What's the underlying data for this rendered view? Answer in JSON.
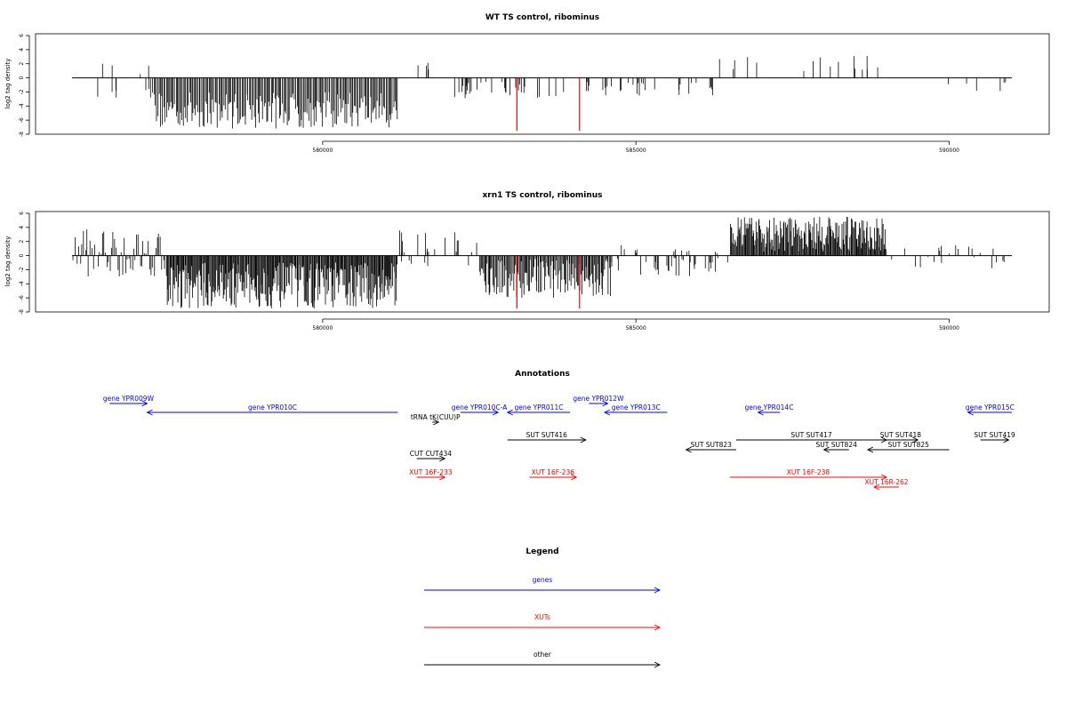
{
  "chart_data": [
    {
      "type": "bar",
      "title": "WT TS control, ribominus",
      "ylabel": "log2 tag density",
      "xlabel": "",
      "xlim": [
        576000,
        591000
      ],
      "ylim": [
        -8,
        6
      ],
      "yticks": [
        6,
        4,
        2,
        0,
        -2,
        -4,
        -6,
        -8
      ],
      "xticks": [
        580000,
        585000,
        590000
      ],
      "grid": false,
      "highlight_color": "#ff0000",
      "highlight_x": [
        583100,
        584100
      ],
      "highlight_value": -7.5,
      "regions": [
        {
          "x_range": [
            576400,
            577300
          ],
          "count": 12,
          "min": -3,
          "max": 3,
          "sparse": true
        },
        {
          "x_range": [
            577300,
            581200
          ],
          "count": 200,
          "min": -7.2,
          "max": -2,
          "sparse": false
        },
        {
          "x_range": [
            581200,
            581700
          ],
          "count": 4,
          "min": 0.5,
          "max": 2.5,
          "sparse": true
        },
        {
          "x_range": [
            582100,
            584600
          ],
          "count": 40,
          "min": -3,
          "max": -0.5,
          "sparse": true
        },
        {
          "x_range": [
            584600,
            586300
          ],
          "count": 22,
          "min": -3,
          "max": -0.5,
          "sparse": true
        },
        {
          "x_range": [
            586300,
            588900
          ],
          "count": 16,
          "min": 0.5,
          "max": 3.3,
          "sparse": true
        },
        {
          "x_range": [
            588900,
            591000
          ],
          "count": 6,
          "min": -2,
          "max": -0.5,
          "sparse": true
        }
      ]
    },
    {
      "type": "bar",
      "title": "xrn1 TS control, ribominus",
      "ylabel": "log2 tag density",
      "xlabel": "",
      "xlim": [
        576000,
        591000
      ],
      "ylim": [
        -8,
        6
      ],
      "yticks": [
        6,
        4,
        2,
        0,
        -2,
        -4,
        -6,
        -8
      ],
      "xticks": [
        580000,
        585000,
        590000
      ],
      "grid": false,
      "highlight_color": "#ff0000",
      "highlight_x": [
        583100,
        584100
      ],
      "highlight_value": -7.5,
      "regions": [
        {
          "x_range": [
            576000,
            577500
          ],
          "count": 60,
          "min": -3,
          "max": 4,
          "sparse": false
        },
        {
          "x_range": [
            577500,
            581200
          ],
          "count": 300,
          "min": -7.5,
          "max": -1,
          "sparse": false
        },
        {
          "x_range": [
            581200,
            582500
          ],
          "count": 25,
          "min": -1.5,
          "max": 4,
          "sparse": true
        },
        {
          "x_range": [
            582500,
            584600
          ],
          "count": 140,
          "min": -6,
          "max": -0.5,
          "sparse": false
        },
        {
          "x_range": [
            584600,
            586500
          ],
          "count": 50,
          "min": -3,
          "max": 1.5,
          "sparse": true
        },
        {
          "x_range": [
            586500,
            589000
          ],
          "count": 200,
          "min": 0.5,
          "max": 5.5,
          "sparse": false
        },
        {
          "x_range": [
            589000,
            591000
          ],
          "count": 30,
          "min": -2,
          "max": 1.5,
          "sparse": true
        }
      ]
    }
  ],
  "annotations": {
    "title": "Annotations",
    "colors": {
      "gene": "#0000ff",
      "xut": "#ff0000",
      "other": "#000000"
    },
    "features": [
      {
        "label": "gene YPR009W",
        "type": "gene",
        "strand": "+",
        "start": 576600,
        "end": 577200,
        "row": 0
      },
      {
        "label": "gene YPR010C",
        "type": "gene",
        "strand": "-",
        "start": 577200,
        "end": 581200,
        "row": 1
      },
      {
        "label": "gene YPR010C-A",
        "type": "gene",
        "strand": "+",
        "start": 582200,
        "end": 582800,
        "row": 1
      },
      {
        "label": "gene YPR011C",
        "type": "gene",
        "strand": "-",
        "start": 582950,
        "end": 583950,
        "row": 1
      },
      {
        "label": "gene YPR012W",
        "type": "gene",
        "strand": "+",
        "start": 584250,
        "end": 584550,
        "row": 0
      },
      {
        "label": "gene YPR013C",
        "type": "gene",
        "strand": "-",
        "start": 584500,
        "end": 585500,
        "row": 1
      },
      {
        "label": "gene YPR014C",
        "type": "gene",
        "strand": "-",
        "start": 586950,
        "end": 587300,
        "row": 1
      },
      {
        "label": "gene YPR015C",
        "type": "gene",
        "strand": "-",
        "start": 590300,
        "end": 591000,
        "row": 1
      },
      {
        "label": "tRNA tK(CUU)P",
        "type": "other",
        "strand": "+",
        "start": 581750,
        "end": 581850,
        "row": 2
      },
      {
        "label": "SUT SUT416",
        "type": "other",
        "strand": "+",
        "start": 582950,
        "end": 584200,
        "row": 3
      },
      {
        "label": "SUT SUT417",
        "type": "other",
        "strand": "+",
        "start": 586600,
        "end": 589000,
        "row": 3
      },
      {
        "label": "SUT SUT418",
        "type": "other",
        "strand": "+",
        "start": 588950,
        "end": 589500,
        "row": 3
      },
      {
        "label": "SUT SUT419",
        "type": "other",
        "strand": "+",
        "start": 590500,
        "end": 590950,
        "row": 3
      },
      {
        "label": "SUT SUT823",
        "type": "other",
        "strand": "-",
        "start": 585800,
        "end": 586600,
        "row": 4
      },
      {
        "label": "SUT SUT824",
        "type": "other",
        "strand": "-",
        "start": 588000,
        "end": 588400,
        "row": 4
      },
      {
        "label": "SUT SUT825",
        "type": "other",
        "strand": "-",
        "start": 588700,
        "end": 590000,
        "row": 4
      },
      {
        "label": "CUT CUT434",
        "type": "other",
        "strand": "+",
        "start": 581500,
        "end": 581950,
        "row": 5
      },
      {
        "label": "XUT 16F-233",
        "type": "xut",
        "strand": "+",
        "start": 581500,
        "end": 581950,
        "row": 6
      },
      {
        "label": "XUT 16F-236",
        "type": "xut",
        "strand": "+",
        "start": 583300,
        "end": 584050,
        "row": 6
      },
      {
        "label": "XUT 16F-238",
        "type": "xut",
        "strand": "+",
        "start": 586500,
        "end": 589000,
        "row": 7
      },
      {
        "label": "XUT 16R-262",
        "type": "xut",
        "strand": "-",
        "start": 588800,
        "end": 589200,
        "row": 8
      }
    ]
  },
  "legend": {
    "title": "Legend",
    "items": [
      {
        "label": "genes",
        "color": "#0000ff"
      },
      {
        "label": "XUTs",
        "color": "#ff0000"
      },
      {
        "label": "other",
        "color": "#000000"
      }
    ]
  }
}
